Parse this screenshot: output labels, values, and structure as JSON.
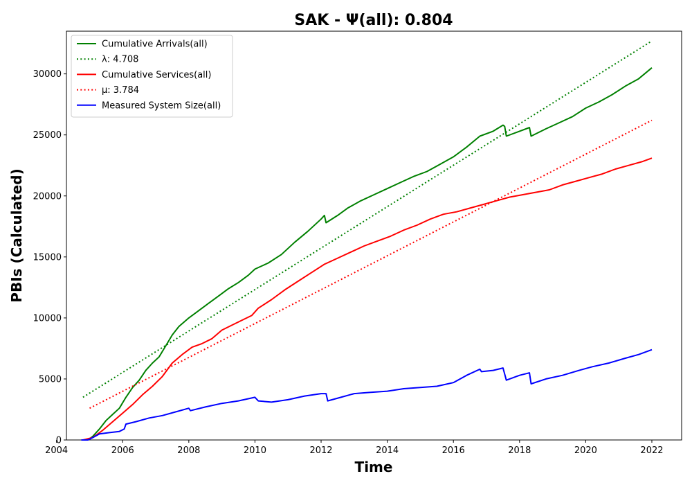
{
  "chart_data": {
    "type": "line",
    "title": "SAK -  Ψ(all): 0.804",
    "xlabel": "Time",
    "ylabel": "PBIs (Calculated)",
    "xlim": [
      2004.3,
      2022.9
    ],
    "ylim": [
      0,
      33500
    ],
    "xticks": [
      2004,
      2006,
      2008,
      2010,
      2012,
      2014,
      2016,
      2018,
      2020,
      2022
    ],
    "yticks": [
      0,
      5000,
      10000,
      15000,
      20000,
      25000,
      30000
    ],
    "legend_position": "upper-left",
    "grid": false,
    "series": [
      {
        "name": "Cumulative Arrivals(all)",
        "style": "solid",
        "color": "#008000",
        "points": [
          [
            2004.75,
            0
          ],
          [
            2004.95,
            0
          ],
          [
            2005.1,
            300
          ],
          [
            2005.3,
            900
          ],
          [
            2005.5,
            1600
          ],
          [
            2005.7,
            2100
          ],
          [
            2005.9,
            2600
          ],
          [
            2006.1,
            3500
          ],
          [
            2006.3,
            4300
          ],
          [
            2006.5,
            4900
          ],
          [
            2006.7,
            5700
          ],
          [
            2006.9,
            6300
          ],
          [
            2007.1,
            6800
          ],
          [
            2007.3,
            7700
          ],
          [
            2007.5,
            8600
          ],
          [
            2007.7,
            9300
          ],
          [
            2008.0,
            10000
          ],
          [
            2008.3,
            10600
          ],
          [
            2008.6,
            11200
          ],
          [
            2008.9,
            11800
          ],
          [
            2009.2,
            12400
          ],
          [
            2009.5,
            12900
          ],
          [
            2009.8,
            13500
          ],
          [
            2010.0,
            14000
          ],
          [
            2010.4,
            14500
          ],
          [
            2010.8,
            15200
          ],
          [
            2011.2,
            16200
          ],
          [
            2011.6,
            17100
          ],
          [
            2012.0,
            18100
          ],
          [
            2012.1,
            18400
          ],
          [
            2012.15,
            17800
          ],
          [
            2012.5,
            18400
          ],
          [
            2012.8,
            19000
          ],
          [
            2013.2,
            19600
          ],
          [
            2013.6,
            20100
          ],
          [
            2014.0,
            20600
          ],
          [
            2014.4,
            21100
          ],
          [
            2014.8,
            21600
          ],
          [
            2015.2,
            22000
          ],
          [
            2015.6,
            22600
          ],
          [
            2016.0,
            23200
          ],
          [
            2016.4,
            24000
          ],
          [
            2016.8,
            24900
          ],
          [
            2017.2,
            25300
          ],
          [
            2017.5,
            25800
          ],
          [
            2017.55,
            25700
          ],
          [
            2017.6,
            24900
          ],
          [
            2018.0,
            25300
          ],
          [
            2018.3,
            25600
          ],
          [
            2018.35,
            24900
          ],
          [
            2018.8,
            25500
          ],
          [
            2019.2,
            26000
          ],
          [
            2019.6,
            26500
          ],
          [
            2020.0,
            27200
          ],
          [
            2020.4,
            27700
          ],
          [
            2020.8,
            28300
          ],
          [
            2021.2,
            29000
          ],
          [
            2021.6,
            29600
          ],
          [
            2022.0,
            30500
          ]
        ]
      },
      {
        "name": "λ: 4.708",
        "style": "dotted",
        "color": "#008000",
        "points": [
          [
            2004.8,
            3500
          ],
          [
            2022.0,
            32700
          ]
        ]
      },
      {
        "name": "Cumulative Services(all)",
        "style": "solid",
        "color": "#ff0000",
        "points": [
          [
            2004.8,
            0
          ],
          [
            2005.1,
            200
          ],
          [
            2005.4,
            800
          ],
          [
            2005.7,
            1500
          ],
          [
            2006.0,
            2200
          ],
          [
            2006.3,
            2900
          ],
          [
            2006.6,
            3700
          ],
          [
            2006.9,
            4400
          ],
          [
            2007.2,
            5200
          ],
          [
            2007.5,
            6300
          ],
          [
            2007.8,
            7000
          ],
          [
            2008.1,
            7600
          ],
          [
            2008.4,
            7900
          ],
          [
            2008.7,
            8300
          ],
          [
            2009.0,
            9000
          ],
          [
            2009.3,
            9400
          ],
          [
            2009.6,
            9800
          ],
          [
            2009.9,
            10200
          ],
          [
            2010.1,
            10800
          ],
          [
            2010.5,
            11500
          ],
          [
            2010.9,
            12300
          ],
          [
            2011.3,
            13000
          ],
          [
            2011.7,
            13700
          ],
          [
            2012.1,
            14400
          ],
          [
            2012.5,
            14900
          ],
          [
            2012.9,
            15400
          ],
          [
            2013.3,
            15900
          ],
          [
            2013.7,
            16300
          ],
          [
            2014.1,
            16700
          ],
          [
            2014.5,
            17200
          ],
          [
            2014.9,
            17600
          ],
          [
            2015.3,
            18100
          ],
          [
            2015.7,
            18500
          ],
          [
            2016.1,
            18700
          ],
          [
            2016.5,
            19000
          ],
          [
            2016.9,
            19300
          ],
          [
            2017.3,
            19600
          ],
          [
            2017.7,
            19900
          ],
          [
            2018.1,
            20100
          ],
          [
            2018.5,
            20300
          ],
          [
            2018.9,
            20500
          ],
          [
            2019.3,
            20900
          ],
          [
            2019.7,
            21200
          ],
          [
            2020.1,
            21500
          ],
          [
            2020.5,
            21800
          ],
          [
            2020.9,
            22200
          ],
          [
            2021.3,
            22500
          ],
          [
            2021.7,
            22800
          ],
          [
            2022.0,
            23100
          ]
        ]
      },
      {
        "name": "μ: 3.784",
        "style": "dotted",
        "color": "#ff0000",
        "points": [
          [
            2005.0,
            2600
          ],
          [
            2022.0,
            26200
          ]
        ]
      },
      {
        "name": "Measured System Size(all)",
        "style": "solid",
        "color": "#0000ff",
        "points": [
          [
            2004.75,
            0
          ],
          [
            2004.95,
            0
          ],
          [
            2005.1,
            200
          ],
          [
            2005.3,
            500
          ],
          [
            2005.6,
            600
          ],
          [
            2005.9,
            700
          ],
          [
            2006.05,
            900
          ],
          [
            2006.1,
            1300
          ],
          [
            2006.4,
            1500
          ],
          [
            2006.8,
            1800
          ],
          [
            2007.2,
            2000
          ],
          [
            2007.6,
            2300
          ],
          [
            2008.0,
            2600
          ],
          [
            2008.05,
            2400
          ],
          [
            2008.5,
            2700
          ],
          [
            2009.0,
            3000
          ],
          [
            2009.5,
            3200
          ],
          [
            2010.0,
            3500
          ],
          [
            2010.1,
            3200
          ],
          [
            2010.5,
            3100
          ],
          [
            2011.0,
            3300
          ],
          [
            2011.5,
            3600
          ],
          [
            2012.0,
            3800
          ],
          [
            2012.15,
            3800
          ],
          [
            2012.2,
            3200
          ],
          [
            2012.6,
            3500
          ],
          [
            2013.0,
            3800
          ],
          [
            2013.5,
            3900
          ],
          [
            2014.0,
            4000
          ],
          [
            2014.5,
            4200
          ],
          [
            2015.0,
            4300
          ],
          [
            2015.5,
            4400
          ],
          [
            2016.0,
            4700
          ],
          [
            2016.4,
            5300
          ],
          [
            2016.8,
            5800
          ],
          [
            2016.85,
            5600
          ],
          [
            2017.2,
            5700
          ],
          [
            2017.5,
            5900
          ],
          [
            2017.6,
            4900
          ],
          [
            2018.0,
            5300
          ],
          [
            2018.3,
            5500
          ],
          [
            2018.35,
            4600
          ],
          [
            2018.8,
            5000
          ],
          [
            2019.3,
            5300
          ],
          [
            2019.8,
            5700
          ],
          [
            2020.2,
            6000
          ],
          [
            2020.7,
            6300
          ],
          [
            2021.2,
            6700
          ],
          [
            2021.6,
            7000
          ],
          [
            2022.0,
            7400
          ]
        ]
      }
    ]
  }
}
